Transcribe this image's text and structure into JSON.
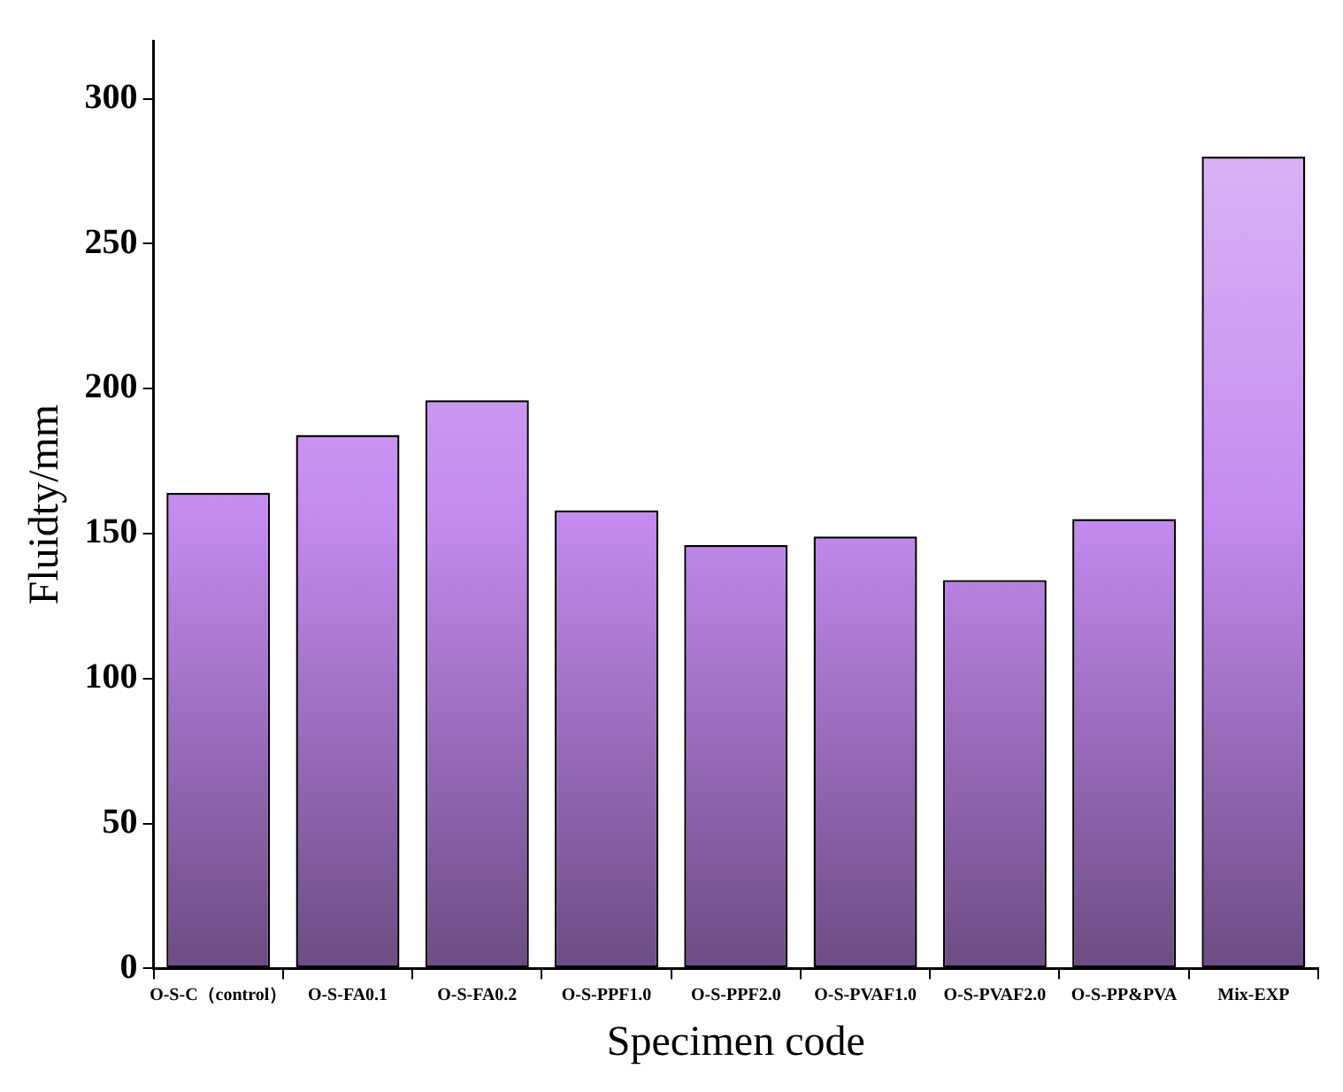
{
  "chart_data": {
    "type": "bar",
    "xlabel": "Specimen code",
    "ylabel": "Fluidty/mm",
    "categories": [
      "O-S-C（control）",
      "O-S-FA0.1",
      "O-S-FA0.2",
      "O-S-PPF1.0",
      "O-S-PPF2.0",
      "O-S-PVAF1.0",
      "O-S-PVAF2.0",
      "O-S-PP&PVA",
      "Mix-EXP"
    ],
    "values": [
      164,
      184,
      196,
      158,
      146,
      149,
      134,
      155,
      280
    ],
    "color": "#c58af0",
    "ylim": [
      0,
      320
    ],
    "yticks": [
      0,
      50,
      100,
      150,
      200,
      250,
      300
    ],
    "grid": false
  }
}
